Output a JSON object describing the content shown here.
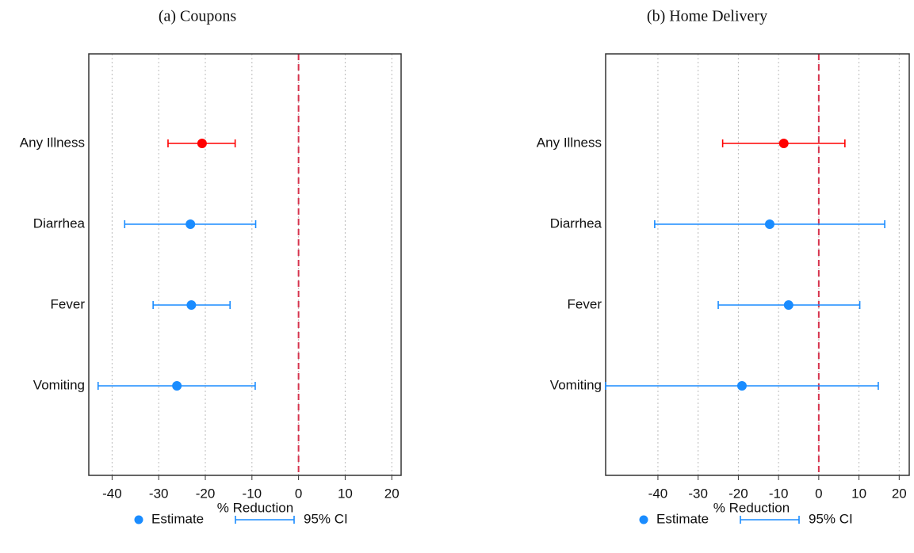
{
  "chart_data": [
    {
      "type": "errorbar",
      "title": "(a) Coupons",
      "xlabel": "% Reduction",
      "categories": [
        "Any Illness",
        "Diarrhea",
        "Fever",
        "Vomiting"
      ],
      "series": [
        {
          "name": "Estimate",
          "color": "#1a8cff",
          "values": [
            -20.7,
            -23.2,
            -23,
            -26.1
          ]
        },
        {
          "name": "95% CI",
          "color": "#1a8cff",
          "lower": [
            -28,
            -37.3,
            -31.2,
            -43
          ],
          "upper": [
            -13.6,
            -9.2,
            -14.7,
            -9.3
          ]
        }
      ],
      "point_colors": [
        "#ff0000",
        "#1a8cff",
        "#1a8cff",
        "#1a8cff"
      ],
      "refline": 0,
      "refline_color": "#d6334d",
      "xlim": [
        -45,
        22
      ],
      "xticks": [
        -40,
        -30,
        -20,
        -10,
        0,
        10,
        20
      ],
      "grid": true
    },
    {
      "type": "errorbar",
      "title": "(b) Home Delivery",
      "xlabel": "% Reduction",
      "categories": [
        "Any Illness",
        "Diarrhea",
        "Fever",
        "Vomiting"
      ],
      "series": [
        {
          "name": "Estimate",
          "color": "#1a8cff",
          "values": [
            -8.7,
            -12.2,
            -7.5,
            -19.1
          ]
        },
        {
          "name": "95% CI",
          "color": "#1a8cff",
          "lower": [
            -23.9,
            -40.8,
            -25,
            -53
          ],
          "upper": [
            6.5,
            16.4,
            10.2,
            14.8
          ]
        }
      ],
      "point_colors": [
        "#ff0000",
        "#1a8cff",
        "#1a8cff",
        "#1a8cff"
      ],
      "refline": 0,
      "refline_color": "#d6334d",
      "xlim": [
        -53,
        22.5
      ],
      "xticks": [
        -40,
        -30,
        -20,
        -10,
        0,
        10,
        20
      ],
      "grid": true
    }
  ]
}
